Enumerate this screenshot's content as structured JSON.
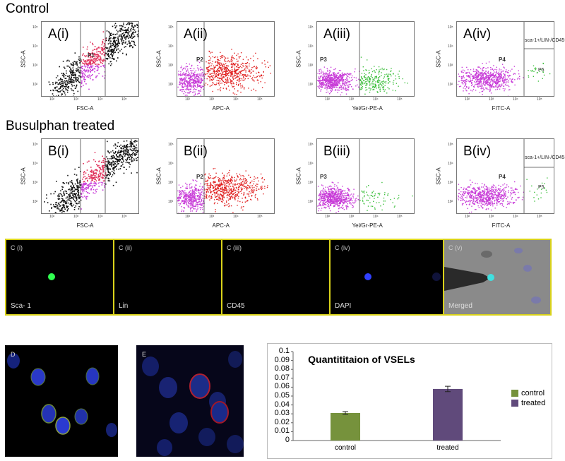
{
  "titles": {
    "control": "Control",
    "busulphan": "Busulphan treated"
  },
  "flow_row_a": [
    {
      "id": "A(i)",
      "x": "FSC-A",
      "y": "SSC-A",
      "gate": "P1"
    },
    {
      "id": "A(ii)",
      "x": "APC-A",
      "y": "SSC-A",
      "gate": "P2"
    },
    {
      "id": "A(iii)",
      "x": "Yel/Gr-PE-A",
      "y": "SSC-A",
      "gate": "P3"
    },
    {
      "id": "A(iv)",
      "x": "FITC-A",
      "y": "SSC-A",
      "gate": "P4",
      "extra": "sca-1+/LIN-/CD45-",
      "extra2": "P5"
    }
  ],
  "flow_row_b": [
    {
      "id": "B(i)",
      "x": "FSC-A",
      "y": "SSC-A",
      "gate": ""
    },
    {
      "id": "B(ii)",
      "x": "APC-A",
      "y": "SSC-A",
      "gate": "P2"
    },
    {
      "id": "B(iii)",
      "x": "Yel/Gr-PE-A",
      "y": "SSC-A",
      "gate": "P3"
    },
    {
      "id": "B(iv)",
      "x": "FITC-A",
      "y": "SSC-A",
      "gate": "P4",
      "extra": "sca-1+/LIN-/CD45-",
      "extra2": "P5"
    }
  ],
  "ticks": {
    "t2": "10²",
    "t3": "10³",
    "t4": "10⁴",
    "t5": "10⁵"
  },
  "cells": [
    {
      "title": "C (i)",
      "label": "Sca- 1"
    },
    {
      "title": "C (ii)",
      "label": "Lin"
    },
    {
      "title": "C (iii)",
      "label": "CD45"
    },
    {
      "title": "C (iv)",
      "label": "DAPI"
    },
    {
      "title": "C (v)",
      "label": "Merged"
    }
  ],
  "micro": {
    "d": "D",
    "e": "E"
  },
  "chart_data": {
    "type": "bar",
    "title": "Quantititaion of VSELs",
    "categories": [
      "control",
      "treated"
    ],
    "values": [
      0.031,
      0.058
    ],
    "errors": [
      0.0015,
      0.003
    ],
    "colors": [
      "#76923c",
      "#604a7b"
    ],
    "ylim": [
      0,
      0.1
    ],
    "yticks": [
      "0",
      "0.01",
      "0.02",
      "0.03",
      "0.04",
      "0.05",
      "0.06",
      "0.07",
      "0.08",
      "0.09",
      "0.1"
    ],
    "legend": [
      "control",
      "treated"
    ],
    "legend_position": "right"
  }
}
